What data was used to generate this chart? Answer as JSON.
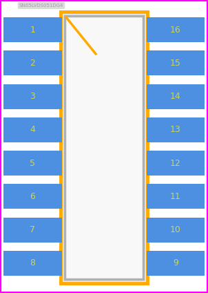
{
  "bg_color": "#ffffff",
  "fig_width": 3.02,
  "fig_height": 4.24,
  "dpi": 100,
  "left_pins": [
    1,
    2,
    3,
    4,
    5,
    6,
    7,
    8
  ],
  "right_pins": [
    16,
    15,
    14,
    13,
    12,
    11,
    10,
    9
  ],
  "pin_color": "#4d8fe0",
  "pin_text_color": "#d4d44a",
  "body_fill": "#e8e8e8",
  "body_inner_fill": "#f8f8f8",
  "body_orange_color": "#ffaa00",
  "body_gray_color": "#b0b0b0",
  "body_orange_lw": 3.5,
  "body_gray_lw": 2.5,
  "notch_color": "#ffaa00",
  "ref_text": "SN65LVDS051DG4",
  "ref_color": "#a0a0a0",
  "ref_fontsize": 5,
  "pin_fontsize": 9
}
